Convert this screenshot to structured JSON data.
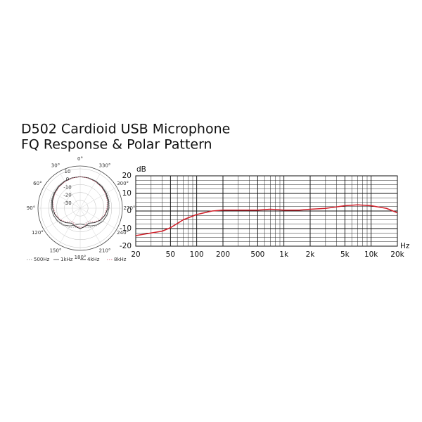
{
  "title": "D502 Cardioid USB Microphone",
  "subtitle": "FQ Response & Polar Pattern",
  "chart_data": [
    {
      "type": "polar",
      "theta": [
        0,
        15,
        30,
        45,
        60,
        75,
        90,
        105,
        120,
        135,
        150,
        165,
        180,
        195,
        210,
        225,
        240,
        255,
        270,
        285,
        300,
        315,
        330,
        345
      ],
      "rlim": [
        -40,
        10
      ],
      "rticks": [
        10,
        0,
        -10,
        -20,
        -30
      ],
      "thetaticks": [
        {
          "value": 0,
          "label": "0°"
        },
        {
          "value": 30,
          "label": "30°"
        },
        {
          "value": 60,
          "label": "60°"
        },
        {
          "value": 90,
          "label": "90°"
        },
        {
          "value": 120,
          "label": "120°"
        },
        {
          "value": 150,
          "label": "150°"
        },
        {
          "value": 180,
          "label": "180°"
        },
        {
          "value": 210,
          "label": "210°"
        },
        {
          "value": 240,
          "label": "240°"
        },
        {
          "value": 270,
          "label": "270°"
        },
        {
          "value": 300,
          "label": "300°"
        },
        {
          "value": 330,
          "label": "330°"
        }
      ],
      "series": [
        {
          "name": "500Hz",
          "color": "#9a9a9a",
          "dash": "dotted",
          "values": [
            0,
            0,
            -0.3,
            -0.7,
            -1.2,
            -2,
            -3,
            -4.5,
            -6.5,
            -9,
            -12,
            -15,
            -16,
            -15,
            -12,
            -9,
            -6.5,
            -4.5,
            -3,
            -2,
            -1.2,
            -0.7,
            -0.3,
            0
          ]
        },
        {
          "name": "1kHz",
          "color": "#555555",
          "dash": "solid",
          "values": [
            0,
            -0.2,
            -0.5,
            -1,
            -1.7,
            -2.5,
            -3.5,
            -5,
            -7,
            -10,
            -14,
            -18,
            -20,
            -18,
            -14,
            -10,
            -7,
            -5,
            -3.5,
            -2.5,
            -1.7,
            -1,
            -0.5,
            -0.2
          ]
        },
        {
          "name": "4kHz",
          "color": "#222222",
          "dash": "solid",
          "values": [
            0,
            -0.3,
            -0.8,
            -1.5,
            -2.5,
            -3.5,
            -5,
            -7,
            -10,
            -14,
            -18,
            -16,
            -14,
            -16,
            -18,
            -14,
            -10,
            -7,
            -5,
            -3.5,
            -2.5,
            -1.5,
            -0.8,
            -0.3
          ]
        },
        {
          "name": "8kHz",
          "color": "#d87a8c",
          "dash": "dotted",
          "values": [
            0,
            -0.5,
            -1.2,
            -2,
            -3,
            -4.5,
            -6,
            -8,
            -11,
            -15,
            -20,
            -17,
            -15,
            -17,
            -20,
            -15,
            -11,
            -8,
            -6,
            -4.5,
            -3,
            -2,
            -1.2,
            -0.5
          ]
        }
      ]
    },
    {
      "type": "line",
      "x_label": "Hz",
      "y_label": "dB",
      "log_x": true,
      "grid": true,
      "xlim": [
        20,
        20000
      ],
      "ylim": [
        -20,
        20
      ],
      "xticks": [
        20,
        50,
        100,
        200,
        500,
        {
          "value": 1000,
          "label": "1k"
        },
        {
          "value": 2000,
          "label": "2k"
        },
        {
          "value": 5000,
          "label": "5k"
        },
        {
          "value": 10000,
          "label": "10k"
        },
        {
          "value": 20000,
          "label": "20k"
        }
      ],
      "yticks": [
        20,
        10,
        0,
        -10,
        -20
      ],
      "x": [
        20,
        30,
        40,
        50,
        70,
        100,
        150,
        200,
        300,
        500,
        700,
        1000,
        1500,
        2000,
        3000,
        5000,
        7000,
        10000,
        15000,
        20000
      ],
      "series": [
        {
          "color": "#d0202a",
          "values": [
            -14,
            -12.5,
            -11.5,
            -9.5,
            -5,
            -2,
            0,
            0.5,
            0.5,
            0.5,
            1,
            0.5,
            0.5,
            1,
            1.5,
            3,
            3.5,
            3,
            1.5,
            -1
          ]
        }
      ]
    }
  ]
}
